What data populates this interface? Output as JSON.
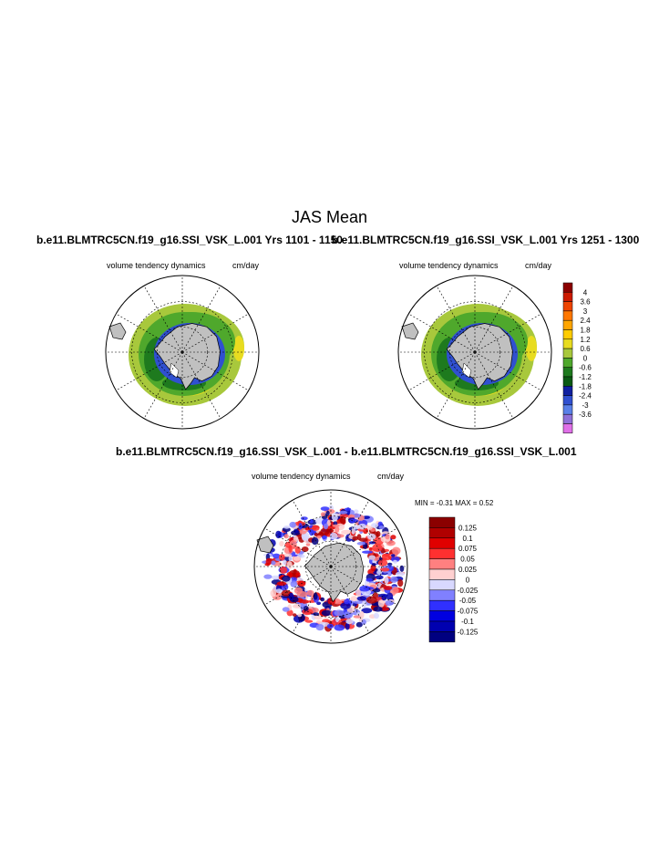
{
  "title": "JAS Mean",
  "panels": [
    {
      "case_title": "b.e11.BLMTRC5CN.f19_g16.SSI_VSK_L.001  Yrs 1101 - 1150",
      "label_left": "volume tendency dynamics",
      "label_right": "cm/day"
    },
    {
      "case_title": "b.e11.BLMTRC5CN.f19_g16.SSI_VSK_L.001  Yrs 1251 - 1300",
      "label_left": "volume tendency dynamics",
      "label_right": "cm/day"
    },
    {
      "case_title": "b.e11.BLMTRC5CN.f19_g16.SSI_VSK_L.001 - b.e11.BLMTRC5CN.f19_g16.SSI_VSK_L.001",
      "label_left": "volume tendency dynamics",
      "label_right": "cm/day",
      "stats": "MIN =  -0.31 MAX =   0.52"
    }
  ],
  "chart_data": [
    {
      "type": "heatmap",
      "projection": "south-polar-stereographic",
      "units": "cm/day",
      "field": "volume tendency dynamics",
      "colorbar_labels": [
        "4",
        "3.6",
        "3",
        "2.4",
        "1.8",
        "1.2",
        "0.6",
        "0",
        "-0.6",
        "-1.2",
        "-1.8",
        "-2.4",
        "-3",
        "-3.6"
      ],
      "colorbar_colors": [
        "#8b0000",
        "#cc1a00",
        "#ee4400",
        "#ff7700",
        "#ffa500",
        "#ffcc00",
        "#e8dc20",
        "#a8c83c",
        "#4fa82c",
        "#1e7a1e",
        "#0b5a14",
        "#1020a0",
        "#3050d0",
        "#5a80e8",
        "#8f70d8",
        "#e070e8"
      ]
    },
    {
      "type": "heatmap",
      "projection": "south-polar-stereographic",
      "units": "cm/day",
      "field": "volume tendency dynamics",
      "colorbar_labels": [
        "4",
        "3.6",
        "3",
        "2.4",
        "1.8",
        "1.2",
        "0.6",
        "0",
        "-0.6",
        "-1.2",
        "-1.8",
        "-2.4",
        "-3",
        "-3.6"
      ],
      "colorbar_colors": [
        "#8b0000",
        "#cc1a00",
        "#ee4400",
        "#ff7700",
        "#ffa500",
        "#ffcc00",
        "#e8dc20",
        "#a8c83c",
        "#4fa82c",
        "#1e7a1e",
        "#0b5a14",
        "#1020a0",
        "#3050d0",
        "#5a80e8",
        "#8f70d8",
        "#e070e8"
      ]
    },
    {
      "type": "heatmap",
      "projection": "south-polar-stereographic",
      "units": "cm/day",
      "field": "volume tendency dynamics",
      "min": -0.31,
      "max": 0.52,
      "colorbar_labels": [
        "0.125",
        "0.1",
        "0.075",
        "0.05",
        "0.025",
        "0",
        "-0.025",
        "-0.05",
        "-0.075",
        "-0.1",
        "-0.125"
      ],
      "colorbar_colors": [
        "#8b0000",
        "#b00000",
        "#e00000",
        "#ff3030",
        "#ff8080",
        "#ffd0d0",
        "#d8d8ff",
        "#8080ff",
        "#3030ff",
        "#0000e0",
        "#0000b0",
        "#000080"
      ]
    }
  ]
}
